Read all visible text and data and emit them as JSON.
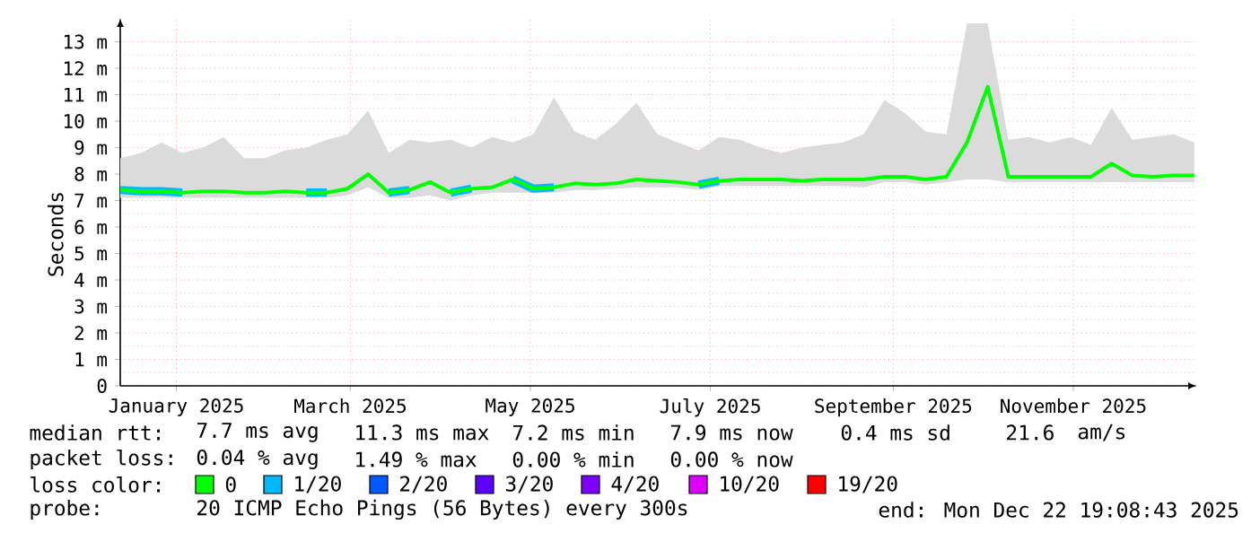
{
  "chart_data": {
    "type": "line",
    "ylabel": "Seconds",
    "x": [
      "2024-12-22",
      "2024-12-29",
      "2025-01-05",
      "2025-01-12",
      "2025-01-19",
      "2025-01-26",
      "2025-02-02",
      "2025-02-09",
      "2025-02-16",
      "2025-02-23",
      "2025-03-02",
      "2025-03-09",
      "2025-03-16",
      "2025-03-23",
      "2025-03-30",
      "2025-04-06",
      "2025-04-13",
      "2025-04-20",
      "2025-04-27",
      "2025-05-04",
      "2025-05-11",
      "2025-05-18",
      "2025-05-25",
      "2025-06-01",
      "2025-06-08",
      "2025-06-15",
      "2025-06-22",
      "2025-06-29",
      "2025-07-06",
      "2025-07-13",
      "2025-07-20",
      "2025-07-27",
      "2025-08-03",
      "2025-08-10",
      "2025-08-17",
      "2025-08-24",
      "2025-08-31",
      "2025-09-07",
      "2025-09-14",
      "2025-09-21",
      "2025-09-28",
      "2025-10-05",
      "2025-10-12",
      "2025-10-19",
      "2025-10-26",
      "2025-11-02",
      "2025-11-09",
      "2025-11-16",
      "2025-11-23",
      "2025-11-30",
      "2025-12-07",
      "2025-12-14",
      "2025-12-21"
    ],
    "series": [
      {
        "name": "0",
        "color": "#00ff00",
        "values": [
          7.4,
          7.35,
          7.35,
          7.3,
          7.35,
          7.35,
          7.3,
          7.3,
          7.35,
          7.3,
          7.3,
          7.45,
          8.0,
          7.3,
          7.4,
          7.7,
          7.3,
          7.45,
          7.5,
          7.8,
          7.45,
          7.5,
          7.65,
          7.6,
          7.65,
          7.8,
          7.75,
          7.7,
          7.6,
          7.75,
          7.8,
          7.8,
          7.8,
          7.75,
          7.8,
          7.8,
          7.8,
          7.9,
          7.9,
          7.8,
          7.9,
          9.2,
          11.3,
          7.9,
          7.9,
          7.9,
          7.9,
          7.9,
          8.4,
          7.95,
          7.9,
          7.95,
          7.95
        ],
        "lower": [
          7.1,
          7.1,
          7.1,
          7.1,
          7.1,
          7.1,
          7.1,
          7.1,
          7.1,
          7.1,
          7.1,
          7.2,
          7.5,
          7.1,
          7.1,
          7.2,
          7.0,
          7.2,
          7.3,
          7.3,
          7.3,
          7.3,
          7.4,
          7.4,
          7.45,
          7.5,
          7.5,
          7.5,
          7.4,
          7.55,
          7.55,
          7.55,
          7.55,
          7.55,
          7.55,
          7.55,
          7.5,
          7.7,
          7.7,
          7.6,
          7.7,
          7.8,
          7.8,
          7.7,
          7.7,
          7.7,
          7.7,
          7.7,
          7.7,
          7.7,
          7.7,
          7.7,
          7.7
        ],
        "upper": [
          8.6,
          8.8,
          9.2,
          8.8,
          9.0,
          9.4,
          8.6,
          8.6,
          8.9,
          9.0,
          9.3,
          9.5,
          10.4,
          8.8,
          9.3,
          9.2,
          9.3,
          9.0,
          9.4,
          9.2,
          9.5,
          10.9,
          9.6,
          9.3,
          9.9,
          10.7,
          9.5,
          9.2,
          8.9,
          9.4,
          9.3,
          9.0,
          8.8,
          9.0,
          9.1,
          9.2,
          9.5,
          10.8,
          10.3,
          9.6,
          9.5,
          13.7,
          13.7,
          9.3,
          9.4,
          9.2,
          9.4,
          9.1,
          10.5,
          9.3,
          9.4,
          9.5,
          9.2
        ]
      },
      {
        "name": "1/20",
        "color": "#00b8ff",
        "values": [
          7.4,
          7.35,
          7.35,
          7.3,
          null,
          null,
          null,
          null,
          null,
          7.3,
          7.3,
          null,
          null,
          7.3,
          7.4,
          null,
          7.3,
          7.45,
          null,
          7.8,
          7.45,
          7.5,
          null,
          null,
          null,
          null,
          null,
          null,
          7.6,
          7.75,
          null,
          null,
          null,
          null,
          null,
          null,
          null,
          null,
          null,
          null,
          null,
          null,
          null,
          null,
          null,
          null,
          null,
          null,
          null,
          null,
          null,
          null,
          null
        ]
      },
      {
        "name": "2/20",
        "color": "#0059ff",
        "values": [
          null,
          null,
          null,
          null,
          null,
          null,
          null,
          null,
          null,
          null,
          null,
          null,
          null,
          null,
          null,
          null,
          null,
          null,
          null,
          null,
          null,
          null,
          null,
          null,
          null,
          null,
          null,
          null,
          null,
          null,
          null,
          null,
          null,
          null,
          null,
          null,
          null,
          null,
          null,
          null,
          null,
          null,
          null,
          null,
          null,
          null,
          null,
          null,
          null,
          null,
          null,
          null,
          null
        ]
      },
      {
        "name": "3/20",
        "color": "#5e00ff",
        "values": [
          null,
          null,
          null,
          null,
          null,
          null,
          null,
          null,
          null,
          null,
          null,
          null,
          null,
          null,
          null,
          null,
          null,
          null,
          null,
          null,
          null,
          null,
          null,
          null,
          null,
          null,
          null,
          null,
          null,
          null,
          null,
          null,
          null,
          null,
          null,
          null,
          null,
          null,
          null,
          null,
          null,
          null,
          null,
          null,
          null,
          null,
          null,
          null,
          null,
          null,
          null,
          null,
          null
        ]
      },
      {
        "name": "4/20",
        "color": "#7e00ff",
        "values": [
          null,
          null,
          null,
          null,
          null,
          null,
          null,
          null,
          null,
          null,
          null,
          null,
          null,
          null,
          null,
          null,
          null,
          null,
          null,
          null,
          null,
          null,
          null,
          null,
          null,
          null,
          null,
          null,
          null,
          null,
          null,
          null,
          null,
          null,
          null,
          null,
          null,
          null,
          null,
          null,
          null,
          null,
          null,
          null,
          null,
          null,
          null,
          null,
          null,
          null,
          null,
          null,
          null
        ]
      },
      {
        "name": "10/20",
        "color": "#dd00ff",
        "values": [
          null,
          null,
          null,
          null,
          null,
          null,
          null,
          null,
          null,
          null,
          null,
          null,
          null,
          null,
          null,
          null,
          null,
          null,
          null,
          null,
          null,
          null,
          null,
          null,
          null,
          null,
          null,
          null,
          null,
          null,
          null,
          null,
          null,
          null,
          null,
          null,
          null,
          null,
          null,
          null,
          null,
          null,
          null,
          null,
          null,
          null,
          null,
          null,
          null,
          null,
          null,
          null,
          null
        ]
      },
      {
        "name": "19/20",
        "color": "#ff0000",
        "values": [
          null,
          null,
          null,
          null,
          null,
          null,
          null,
          null,
          null,
          null,
          null,
          null,
          null,
          null,
          null,
          null,
          null,
          null,
          null,
          null,
          null,
          null,
          null,
          null,
          null,
          null,
          null,
          null,
          null,
          null,
          null,
          null,
          null,
          null,
          null,
          null,
          null,
          null,
          null,
          null,
          null,
          null,
          null,
          null,
          null,
          null,
          null,
          null,
          null,
          null,
          null,
          null,
          null
        ]
      }
    ],
    "xlim": [
      "2024-12-22",
      "2025-12-22"
    ],
    "xticks": [
      {
        "value": "2025-01-10",
        "label": "January 2025"
      },
      {
        "value": "2025-03-10",
        "label": "March 2025"
      },
      {
        "value": "2025-05-10",
        "label": "May 2025"
      },
      {
        "value": "2025-07-10",
        "label": "July 2025"
      },
      {
        "value": "2025-09-10",
        "label": "September 2025"
      },
      {
        "value": "2025-11-10",
        "label": "November 2025"
      }
    ],
    "ylim": [
      0,
      13.9
    ],
    "yticks": [
      0,
      {
        "value": 1,
        "label": "1 m"
      },
      {
        "value": 2,
        "label": "2 m"
      },
      {
        "value": 3,
        "label": "3 m"
      },
      {
        "value": 4,
        "label": "4 m"
      },
      {
        "value": 5,
        "label": "5 m"
      },
      {
        "value": 6,
        "label": "6 m"
      },
      {
        "value": 7,
        "label": "7 m"
      },
      {
        "value": 8,
        "label": "8 m"
      },
      {
        "value": 9,
        "label": "9 m"
      },
      {
        "value": 10,
        "label": "10 m"
      },
      {
        "value": 11,
        "label": "11 m"
      },
      {
        "value": 12,
        "label": "12 m"
      },
      {
        "value": 13,
        "label": "13 m"
      }
    ],
    "grid": true,
    "legend": "bottom",
    "legend_title": "loss color:",
    "marker": "none",
    "line_style": "solid",
    "annotations": [
      "median rtt:",
      "7.7 ms avg",
      "11.3 ms max",
      "7.2 ms min",
      "7.9 ms now",
      "0.4 ms sd",
      "21.6",
      "am/s",
      "packet loss:",
      "0.04 % avg",
      "1.49 % max",
      "0.00 % min",
      "0.00 % now",
      "probe:",
      "20 ICMP Echo Pings (56 Bytes) every 300s",
      "end: Mon Dec 22 19:08:43 2025"
    ]
  }
}
